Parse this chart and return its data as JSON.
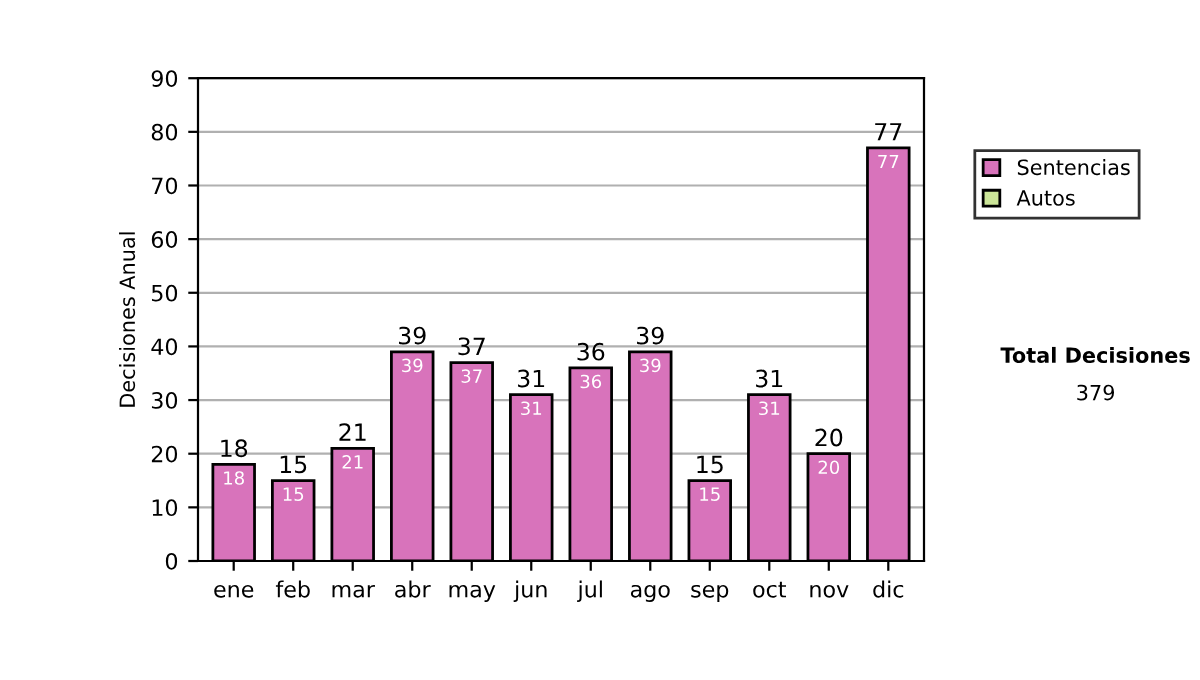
{
  "chart_data": {
    "type": "bar",
    "stacked": true,
    "ylabel": "Decisiones Anual",
    "categories": [
      "ene",
      "feb",
      "mar",
      "abr",
      "may",
      "jun",
      "jul",
      "ago",
      "sep",
      "oct",
      "nov",
      "dic"
    ],
    "series": [
      {
        "name": "Sentencias",
        "color": "#d873bb",
        "values": [
          18,
          15,
          21,
          39,
          37,
          31,
          36,
          39,
          15,
          31,
          20,
          77
        ],
        "value_labels": [
          "18",
          "15",
          "21",
          "39",
          "37",
          "31",
          "36",
          "39",
          "15",
          "31",
          "20",
          "77"
        ]
      },
      {
        "name": "Autos",
        "color": "#cce699",
        "values": [
          0,
          0,
          0,
          0,
          0,
          0,
          0,
          0,
          0,
          0,
          0,
          0
        ]
      }
    ],
    "totals": [
      "18",
      "15",
      "21",
      "39",
      "37",
      "31",
      "36",
      "39",
      "15",
      "31",
      "20",
      "77"
    ],
    "ylim": [
      0,
      90
    ],
    "yticks": [
      0,
      10,
      20,
      30,
      40,
      50,
      60,
      70,
      80,
      90
    ],
    "grid": "y",
    "legend": "right",
    "annotations": [
      "Total Decisiones",
      "379"
    ]
  }
}
